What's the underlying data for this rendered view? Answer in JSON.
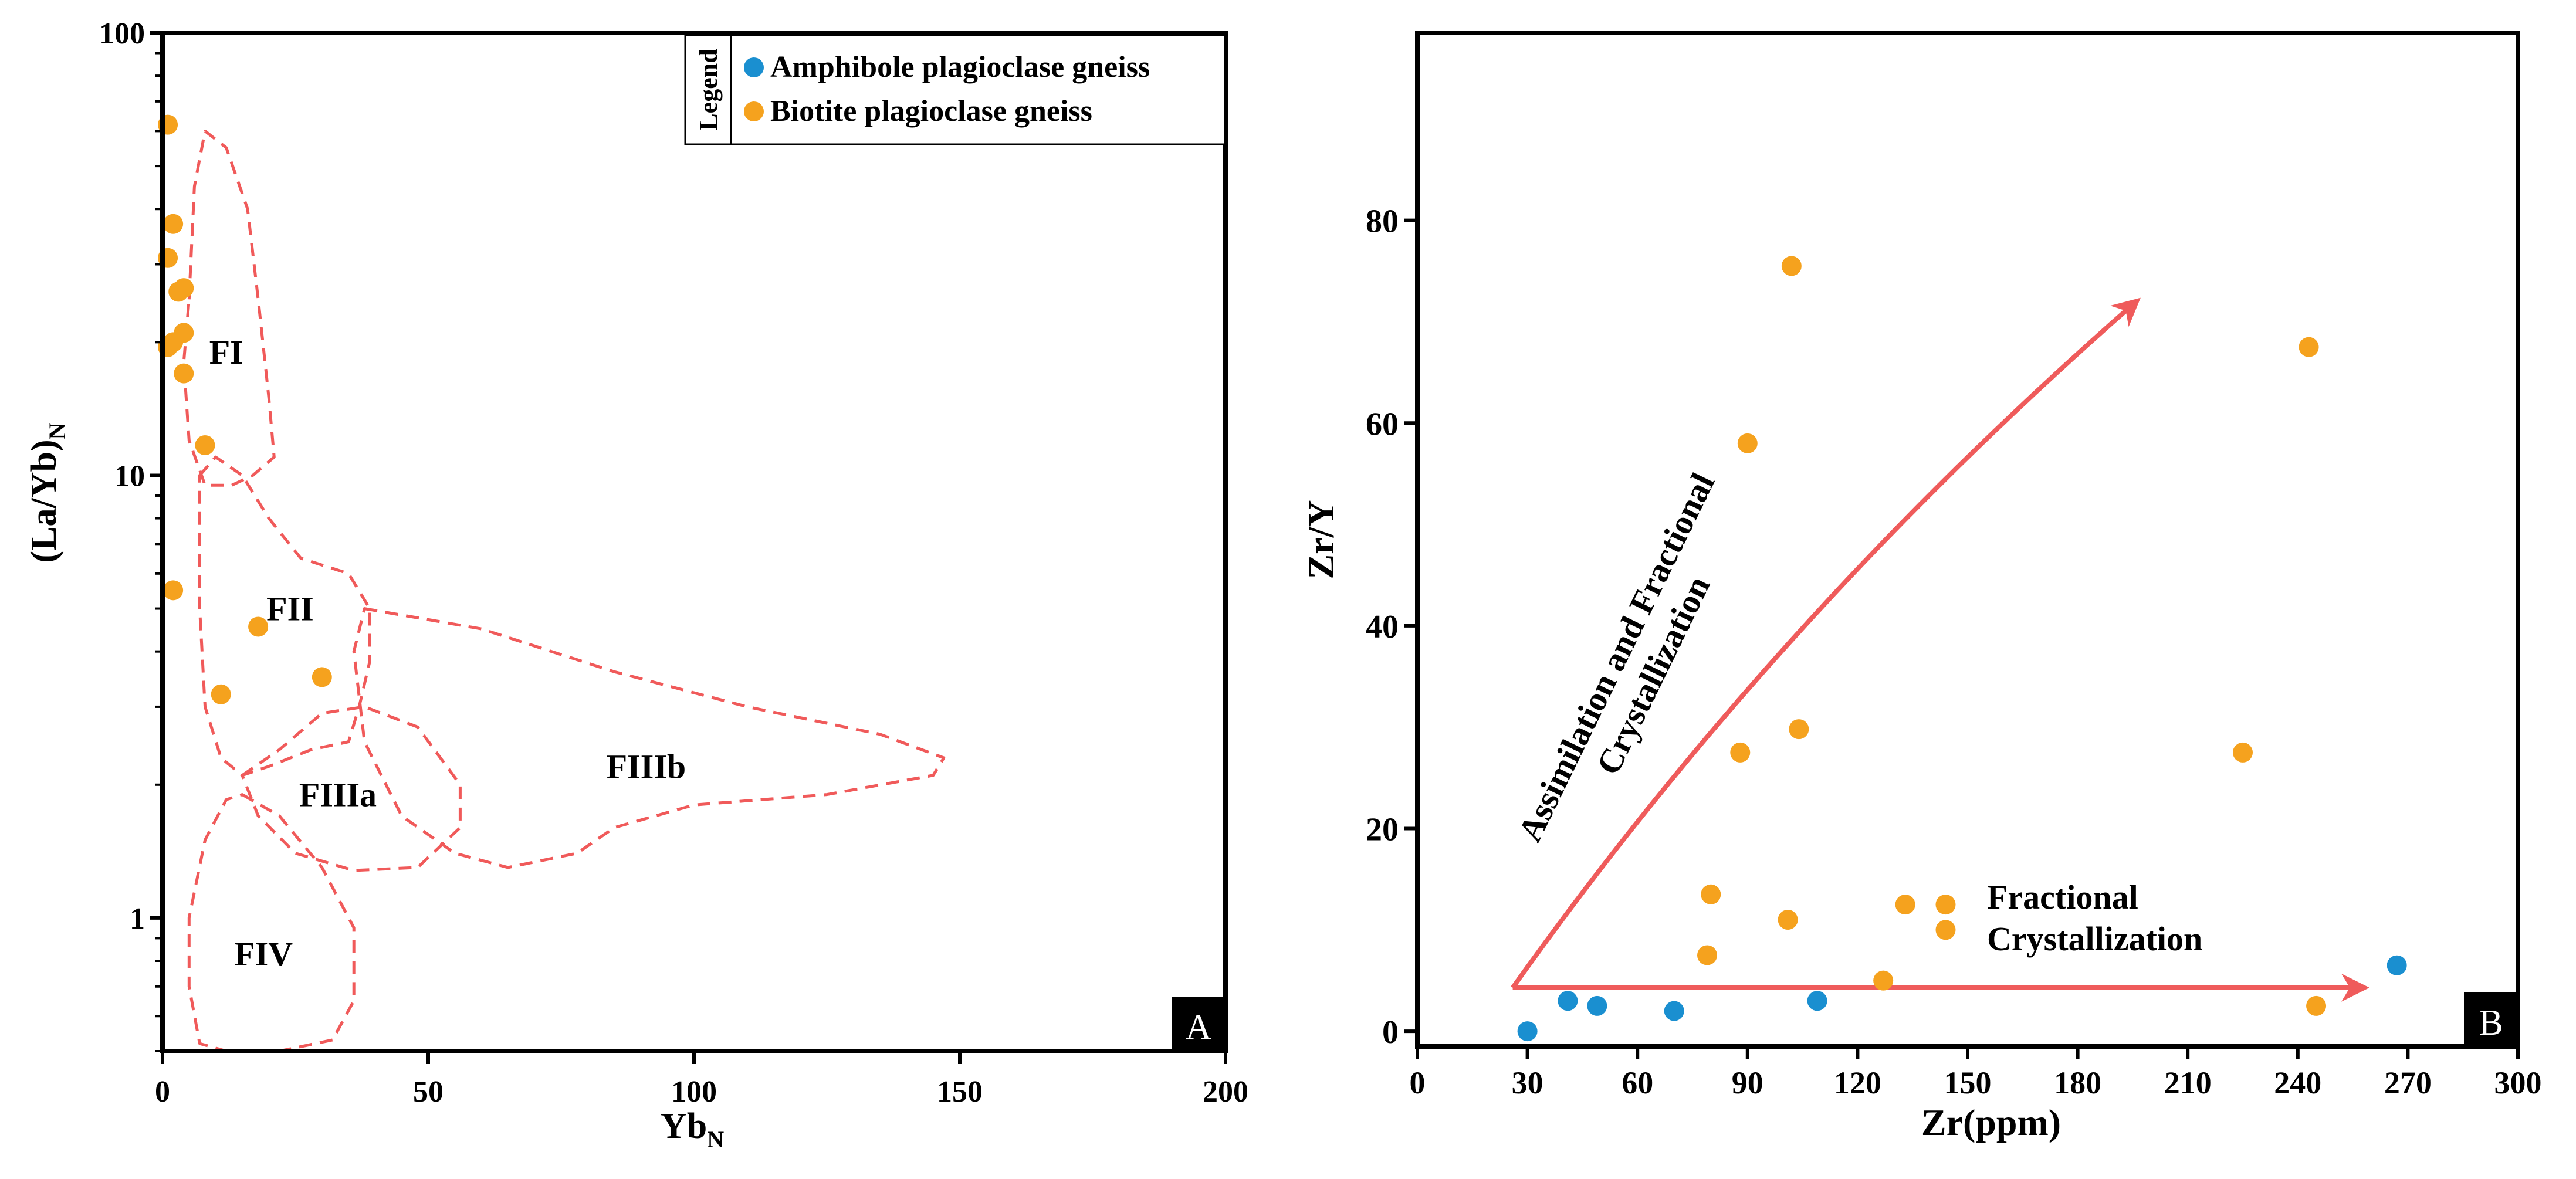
{
  "figure": {
    "colors": {
      "amphibole": "#1a8fd0",
      "biotite": "#f5a21e",
      "field_outline": "#f05a5a",
      "trend_arrow": "#ef5b5b",
      "axis": "#000000"
    }
  },
  "chart_data": [
    {
      "panel": "A",
      "type": "scatter",
      "title": "",
      "xlabel_main": "Yb",
      "xlabel_sub": "N",
      "ylabel_main": "(La/Yb)",
      "ylabel_sub": "N",
      "x_scale": "linear",
      "y_scale": "log",
      "xlim": [
        0,
        200
      ],
      "ylim": [
        0.5,
        100
      ],
      "x_ticks": [
        0,
        50,
        100,
        150,
        200
      ],
      "x_tick_labels": [
        "0",
        "50",
        "100",
        "150",
        "200"
      ],
      "y_ticks": [
        1,
        10,
        100
      ],
      "y_tick_labels": [
        "1",
        "10",
        "100"
      ],
      "legend": {
        "title": "Legend",
        "placement": "top-right",
        "entries": [
          {
            "label": "Amphibole plagioclase gneiss",
            "color": "#1a8fd0"
          },
          {
            "label": "Biotite plagioclase gneiss",
            "color": "#f5a21e"
          }
        ]
      },
      "fields": [
        {
          "label": "FI",
          "label_at": [
            12,
            19
          ],
          "outline": [
            [
              5,
              25
            ],
            [
              6,
              45
            ],
            [
              8,
              60
            ],
            [
              12,
              55
            ],
            [
              16,
              40
            ],
            [
              18,
              25
            ],
            [
              20,
              15
            ],
            [
              21,
              11
            ],
            [
              17,
              10
            ],
            [
              13,
              9.5
            ],
            [
              8,
              9.5
            ],
            [
              5,
              12
            ],
            [
              4,
              18
            ],
            [
              5,
              25
            ]
          ]
        },
        {
          "label": "FII",
          "label_at": [
            24,
            5
          ],
          "outline": [
            [
              7,
              10
            ],
            [
              10,
              11
            ],
            [
              15,
              10
            ],
            [
              20,
              8
            ],
            [
              26,
              6.5
            ],
            [
              35,
              6
            ],
            [
              39,
              5
            ],
            [
              39,
              3.8
            ],
            [
              37,
              3
            ],
            [
              35,
              2.5
            ],
            [
              28,
              2.4
            ],
            [
              20,
              2.2
            ],
            [
              15,
              2.1
            ],
            [
              11,
              2.3
            ],
            [
              8,
              3
            ],
            [
              7,
              5
            ],
            [
              7,
              10
            ]
          ]
        },
        {
          "label": "FIIIa",
          "label_at": [
            33,
            1.9
          ],
          "outline": [
            [
              15,
              2.1
            ],
            [
              22,
              2.4
            ],
            [
              30,
              2.9
            ],
            [
              38,
              3
            ],
            [
              48,
              2.7
            ],
            [
              56,
              2
            ],
            [
              56,
              1.6
            ],
            [
              48,
              1.3
            ],
            [
              36,
              1.28
            ],
            [
              25,
              1.4
            ],
            [
              18,
              1.7
            ],
            [
              15,
              2.1
            ]
          ]
        },
        {
          "label": "FIIIb",
          "label_at": [
            91,
            2.2
          ],
          "outline": [
            [
              38,
              5
            ],
            [
              60,
              4.5
            ],
            [
              85,
              3.6
            ],
            [
              110,
              3
            ],
            [
              135,
              2.6
            ],
            [
              147,
              2.3
            ],
            [
              145,
              2.1
            ],
            [
              125,
              1.9
            ],
            [
              100,
              1.8
            ],
            [
              85,
              1.6
            ],
            [
              78,
              1.4
            ],
            [
              65,
              1.3
            ],
            [
              55,
              1.4
            ],
            [
              45,
              1.7
            ],
            [
              38,
              2.5
            ],
            [
              36,
              4
            ],
            [
              38,
              5
            ]
          ]
        },
        {
          "label": "FIV",
          "label_at": [
            19,
            0.83
          ],
          "outline": [
            [
              15,
              1.9
            ],
            [
              22,
              1.7
            ],
            [
              30,
              1.3
            ],
            [
              36,
              0.95
            ],
            [
              36,
              0.65
            ],
            [
              32,
              0.53
            ],
            [
              22,
              0.5
            ],
            [
              12,
              0.5
            ],
            [
              7,
              0.52
            ],
            [
              5,
              0.7
            ],
            [
              5,
              1
            ],
            [
              8,
              1.5
            ],
            [
              12,
              1.85
            ],
            [
              15,
              1.9
            ]
          ]
        }
      ],
      "series": [
        {
          "name": "Biotite plagioclase gneiss",
          "color": "#f5a21e",
          "x": [
            1,
            2,
            1,
            3,
            4,
            1,
            2,
            4,
            4,
            8,
            2,
            18,
            11,
            30
          ],
          "y": [
            62,
            37,
            31,
            26,
            26.5,
            19.5,
            20,
            21,
            17,
            11.7,
            5.5,
            4.55,
            3.2,
            3.5
          ]
        },
        {
          "name": "Amphibole plagioclase gneiss",
          "color": "#1a8fd0",
          "x": [],
          "y": []
        }
      ],
      "panel_label": "A"
    },
    {
      "panel": "B",
      "type": "scatter",
      "title": "",
      "xlabel": "Zr(ppm)",
      "ylabel": "Zr/Y",
      "xlim": [
        0,
        300
      ],
      "ylim": [
        -1.5,
        98.5
      ],
      "x_ticks": [
        0,
        30,
        60,
        90,
        120,
        150,
        180,
        210,
        240,
        270,
        300
      ],
      "x_tick_labels": [
        "0",
        "30",
        "60",
        "90",
        "120",
        "150",
        "180",
        "210",
        "240",
        "270",
        "300"
      ],
      "y_ticks": [
        0,
        20,
        40,
        60,
        80
      ],
      "y_tick_labels": [
        "0",
        "20",
        "40",
        "60",
        "80"
      ],
      "series": [
        {
          "name": "Biotite plagioclase gneiss",
          "color": "#f5a21e",
          "x": [
            102,
            90,
            243,
            88,
            104,
            225,
            80,
            101,
            133,
            144,
            144,
            79,
            127,
            245
          ],
          "y": [
            75.5,
            58,
            67.5,
            27.5,
            29.8,
            27.5,
            13.5,
            11,
            12.5,
            12.5,
            10,
            7.5,
            5,
            2.5
          ]
        },
        {
          "name": "Amphibole plagioclase gneiss",
          "color": "#1a8fd0",
          "x": [
            30,
            41,
            49,
            70,
            109,
            267
          ],
          "y": [
            0,
            3,
            2.5,
            2,
            3,
            6.5
          ]
        }
      ],
      "annotations": [
        {
          "lines": [
            "Fractional",
            "Crystallization"
          ],
          "at": [
            160,
            11.5
          ]
        },
        {
          "lines": [
            "Assimilation and Fractional",
            "Crystallization"
          ],
          "rotation_deg": -64,
          "at": [
            62,
            30
          ]
        }
      ],
      "trend_arrows": [
        {
          "name": "fractional-crystallization-arrow",
          "from": [
            26,
            4.3
          ],
          "to": [
            258,
            4.3
          ]
        },
        {
          "name": "afc-arrow",
          "from": [
            26,
            4.3
          ],
          "to": [
            196,
            72
          ],
          "curve_via": [
            98,
            41
          ]
        }
      ],
      "panel_label": "B"
    }
  ]
}
